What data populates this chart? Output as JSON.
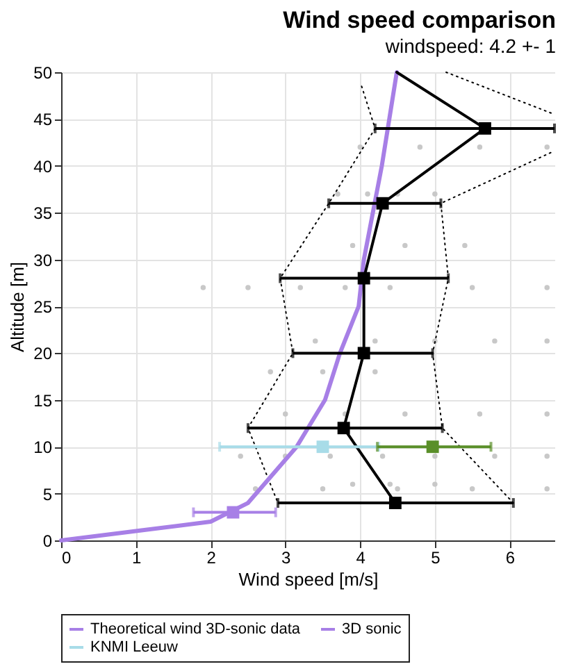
{
  "chart_data": {
    "type": "line",
    "title": "Wind speed comparison",
    "subtitle": "windspeed: 4.2 +- 1",
    "xlabel": "Wind speed [m/s]",
    "ylabel": "Altitude [m]",
    "xlim": [
      0,
      6.6
    ],
    "xticks": [
      0,
      1,
      2,
      3,
      4,
      5,
      6
    ],
    "ylim": [
      0,
      50
    ],
    "yticks": [
      0,
      5,
      10,
      15,
      20,
      25,
      30,
      35,
      40,
      45,
      50
    ],
    "grid": true,
    "legend": "bottom",
    "series": [
      {
        "type": "scatter",
        "color": "#c8c8c8",
        "marker": "circle",
        "x": [
          4.0,
          4.8,
          5.6,
          6.5,
          3.7,
          4.1,
          4.5,
          5.0,
          3.9,
          4.6,
          5.4,
          1.9,
          2.5,
          3.2,
          3.8,
          4.4,
          5.5,
          6.5,
          3.4,
          4.2,
          5.0,
          5.8,
          6.5,
          2.8,
          3.5,
          4.2,
          3.0,
          3.8,
          4.6,
          5.6,
          6.5,
          2.4,
          3.0,
          3.6,
          4.3,
          5.0,
          5.8,
          6.5,
          3.9,
          4.4,
          5.0,
          2.6,
          3.5,
          4.5,
          5.5,
          6.5
        ],
        "values": [
          42,
          42,
          42,
          42,
          37,
          37,
          37,
          37,
          31.5,
          31.5,
          31.5,
          27,
          27,
          27,
          27,
          27,
          27,
          27,
          21.3,
          21.3,
          21.3,
          21.3,
          21.3,
          18,
          18,
          18,
          13.5,
          13.5,
          13.5,
          13.5,
          13.5,
          9,
          9,
          9,
          9,
          9,
          9,
          9,
          6,
          6,
          6,
          5.5,
          5.5,
          5.5,
          5.5,
          5.5
        ]
      },
      {
        "color": "#000000",
        "line_style": "dotted",
        "marker": "none",
        "x": [
          4.02,
          4.2,
          3.58,
          2.93,
          3.1,
          2.5,
          2.9
        ],
        "values": [
          48.5,
          44,
          36,
          28,
          20,
          12,
          4
        ]
      },
      {
        "color": "#000000",
        "line_style": "dotted",
        "marker": "none",
        "x": [
          6.05,
          5.1,
          4.97,
          5.18,
          5.08,
          6.6
        ],
        "values": [
          4,
          12,
          20,
          28,
          36,
          41.6
        ]
      },
      {
        "color": "#000000",
        "line_style": "dotted",
        "marker": "none",
        "x": [
          5.15,
          6.6
        ],
        "values": [
          50,
          45.5
        ]
      },
      {
        "name": "Theoretical wind 3D-sonic data",
        "color": "#a77fe6",
        "line_style": "solid",
        "marker": "none",
        "x": [
          0,
          1,
          2,
          2.5,
          3.15,
          3.53,
          3.73,
          3.98,
          4.05,
          4.29,
          4.49
        ],
        "values": [
          0,
          1,
          2,
          4,
          10,
          15,
          20,
          25,
          30,
          40,
          50
        ]
      },
      {
        "color": "#000000",
        "line_style": "solid",
        "marker": "square",
        "x": [
          4.47,
          3.78,
          4.05,
          4.05,
          4.3,
          5.67
        ],
        "values": [
          4,
          12,
          20,
          28,
          36,
          44
        ],
        "xerrors": [
          [
            2.9,
            6.05
          ],
          [
            2.5,
            5.1
          ],
          [
            3.1,
            4.97
          ],
          [
            2.93,
            5.18
          ],
          [
            3.58,
            5.08
          ],
          [
            4.2,
            6.6
          ]
        ]
      },
      {
        "color": "#000000",
        "line_style": "solid",
        "marker": "none",
        "x": [
          5.67,
          4.49
        ],
        "values": [
          44,
          50
        ]
      },
      {
        "name": "3D sonic",
        "type": "scatter",
        "color": "#a77fe6",
        "marker": "square",
        "x": [
          2.3
        ],
        "values": [
          3
        ],
        "xerrors": [
          [
            1.77,
            2.87
          ]
        ]
      },
      {
        "name": "KNMI Leeuw",
        "type": "scatter",
        "color": "#a8dce8",
        "marker": "square",
        "x": [
          3.5
        ],
        "values": [
          10
        ],
        "xerrors": [
          [
            2.12,
            4.25
          ]
        ]
      },
      {
        "type": "scatter",
        "color": "#5a8f29",
        "marker": "square",
        "x": [
          4.97
        ],
        "values": [
          10
        ],
        "xerrors": [
          [
            4.23,
            5.75
          ]
        ]
      }
    ]
  }
}
